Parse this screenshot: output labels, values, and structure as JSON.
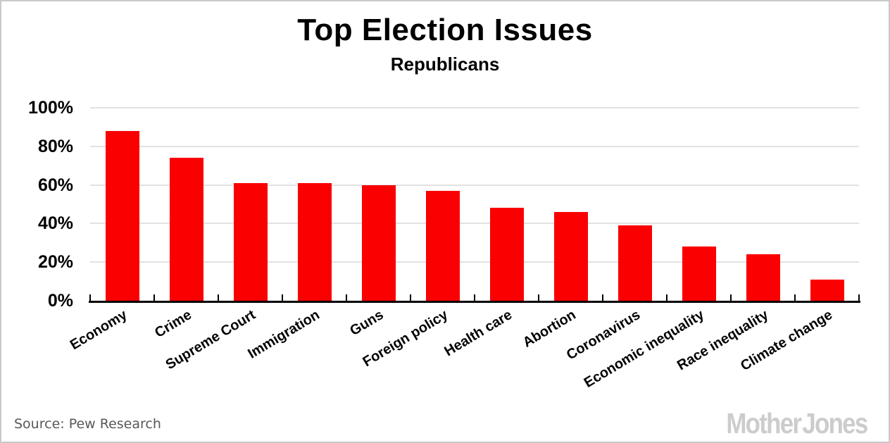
{
  "chart_data": {
    "type": "bar",
    "title": "Top Election Issues",
    "subtitle": "Republicans",
    "categories": [
      "Economy",
      "Crime",
      "Supreme Court",
      "Immigration",
      "Guns",
      "Foreign policy",
      "Health care",
      "Abortion",
      "Coronavirus",
      "Economic inequality",
      "Race inequality",
      "Climate change"
    ],
    "values": [
      88,
      74,
      61,
      61,
      60,
      57,
      48,
      46,
      39,
      28,
      24,
      11
    ],
    "unit": "%",
    "xlabel": "",
    "ylabel": "",
    "ylim": [
      0,
      100
    ],
    "yticks": [
      0,
      20,
      40,
      60,
      80,
      100
    ],
    "ytick_labels": [
      "0%",
      "20%",
      "40%",
      "60%",
      "80%",
      "100%"
    ],
    "grid": "horizontal",
    "legend": "none",
    "bar_color": "#FA0000",
    "gridline_color": "#E2E2E2",
    "axis_color": "#000000"
  },
  "footer": {
    "source_text": "Source: Pew Research",
    "brand": "Mother Jones"
  }
}
